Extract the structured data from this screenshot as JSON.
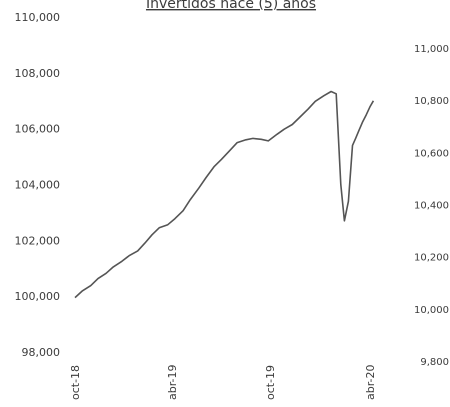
{
  "chart_data": {
    "type": "line",
    "title": "Invertidos hace (5) años",
    "x_ticks": [
      "oct-18",
      "abr-19",
      "oct-19",
      "abr-20"
    ],
    "y_left": {
      "ylim": [
        98000,
        110000
      ],
      "ticks": [
        "98,000",
        "100,000",
        "102,000",
        "104,000",
        "106,000",
        "108,000",
        "110,000"
      ]
    },
    "y_right": {
      "ylim": [
        9800,
        11000
      ],
      "ticks": [
        "9,800",
        "10,000",
        "10,200",
        "10,400",
        "10,600",
        "10,800",
        "11,000"
      ]
    },
    "grid": false,
    "series": [
      {
        "color": "#555555",
        "x": [
          "2018-10-01",
          "2018-10-15",
          "2018-11-01",
          "2018-11-15",
          "2018-12-01",
          "2018-12-15",
          "2019-01-01",
          "2019-01-15",
          "2019-02-01",
          "2019-02-15",
          "2019-03-01",
          "2019-03-15",
          "2019-04-01",
          "2019-04-15",
          "2019-05-01",
          "2019-05-15",
          "2019-06-01",
          "2019-06-15",
          "2019-07-01",
          "2019-07-15",
          "2019-08-01",
          "2019-08-15",
          "2019-09-01",
          "2019-09-15",
          "2019-10-01",
          "2019-10-15",
          "2019-11-01",
          "2019-11-15",
          "2019-12-01",
          "2019-12-15",
          "2020-01-01",
          "2020-01-15",
          "2020-02-01",
          "2020-02-15",
          "2020-02-25",
          "2020-03-05",
          "2020-03-12",
          "2020-03-20",
          "2020-03-28",
          "2020-04-03",
          "2020-04-10",
          "2020-04-17",
          "2020-04-24",
          "2020-05-01",
          "2020-05-08"
        ],
        "y": [
          99950,
          100180,
          100380,
          100630,
          100820,
          101050,
          101250,
          101450,
          101620,
          101900,
          102200,
          102450,
          102560,
          102780,
          103060,
          103460,
          103880,
          104250,
          104650,
          104900,
          105230,
          105500,
          105600,
          105650,
          105620,
          105560,
          105800,
          105980,
          106150,
          106400,
          106700,
          106980,
          107180,
          107330,
          107250,
          104000,
          102700,
          103400,
          105400,
          105650,
          105950,
          106250,
          106500,
          106780,
          107000
        ]
      }
    ]
  }
}
